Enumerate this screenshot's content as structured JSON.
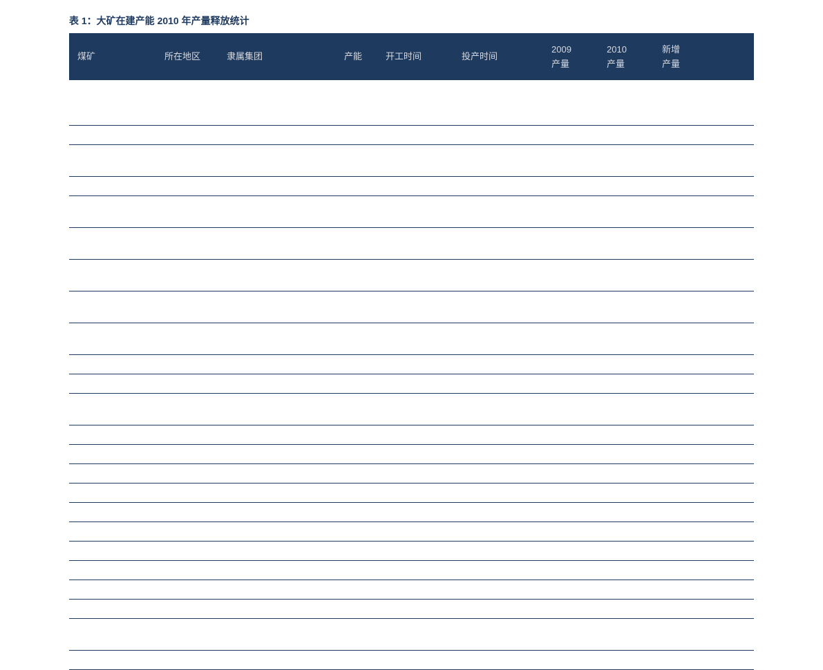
{
  "title": "表 1：大矿在建产能 2010 年产量释放统计",
  "headers": {
    "mine": "煤矿",
    "region": "所在地区",
    "group": "隶属集团",
    "capacity": "产能",
    "start_time": "开工时间",
    "production_time": "投产时间",
    "y2009_line1": "2009",
    "y2009_line2": "产量",
    "y2010_line1": "2010",
    "y2010_line2": "产量",
    "new_line1": "新增",
    "new_line2": "产量"
  },
  "colors": {
    "title_color": "#1e3a5f",
    "header_bg": "#1e3a5f",
    "header_text": "#d5d8de",
    "row_border": "#1e3a5f",
    "background": "#ffffff"
  },
  "row_heights": [
    "tall",
    "short",
    "tall",
    "short",
    "tall",
    "tall",
    "tall",
    "tall",
    "tall",
    "short",
    "short",
    "tall",
    "short",
    "short",
    "short",
    "short",
    "short",
    "short",
    "short",
    "short",
    "short",
    "short",
    "tall",
    "short"
  ],
  "row_count": 24
}
